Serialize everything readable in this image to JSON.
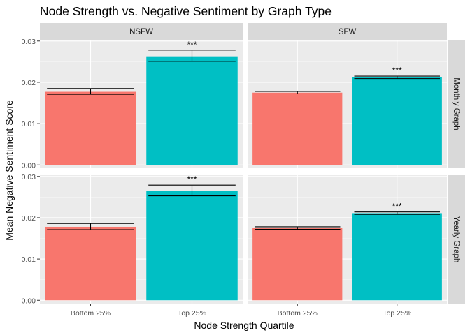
{
  "chart_data": {
    "type": "bar",
    "title": "Node Strength vs. Negative Sentiment by Graph Type",
    "xlabel": "Node Strength Quartile",
    "ylabel": "Mean Negative Sentiment Score",
    "categories": [
      "Bottom 25%",
      "Top 25%"
    ],
    "yticks": [
      "0.00",
      "0.01",
      "0.02",
      "0.03"
    ],
    "ylim": [
      -0.0008,
      0.0303
    ],
    "grid": true,
    "bar_colors": [
      "#F8766D",
      "#00BFC4"
    ],
    "background": "#EBEBEB",
    "strip_fill": "#D9D9D9",
    "columns": [
      "NSFW",
      "SFW"
    ],
    "rows": [
      "Monthly Graph",
      "Yearly Graph"
    ],
    "significance_label": "***",
    "panels": [
      {
        "column": "NSFW",
        "row": "Monthly Graph",
        "values": [
          0.0177,
          0.0263
        ],
        "errors": [
          [
            0.0171,
            0.0185
          ],
          [
            0.0251,
            0.0278
          ]
        ],
        "annotations": [
          "",
          "***"
        ]
      },
      {
        "column": "SFW",
        "row": "Monthly Graph",
        "values": [
          0.0175,
          0.0212
        ],
        "errors": [
          [
            0.0172,
            0.0178
          ],
          [
            0.0209,
            0.0215
          ]
        ],
        "annotations": [
          "",
          "***"
        ]
      },
      {
        "column": "NSFW",
        "row": "Yearly Graph",
        "values": [
          0.0178,
          0.0265
        ],
        "errors": [
          [
            0.0171,
            0.0186
          ],
          [
            0.0253,
            0.0279
          ]
        ],
        "annotations": [
          "",
          "***"
        ]
      },
      {
        "column": "SFW",
        "row": "Yearly Graph",
        "values": [
          0.0175,
          0.0211
        ],
        "errors": [
          [
            0.0172,
            0.0178
          ],
          [
            0.0208,
            0.0214
          ]
        ],
        "annotations": [
          "",
          "***"
        ]
      }
    ]
  }
}
